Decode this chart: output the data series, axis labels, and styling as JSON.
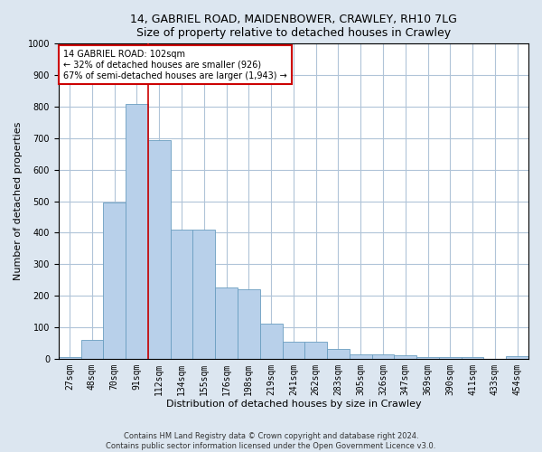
{
  "title1": "14, GABRIEL ROAD, MAIDENBOWER, CRAWLEY, RH10 7LG",
  "title2": "Size of property relative to detached houses in Crawley",
  "xlabel": "Distribution of detached houses by size in Crawley",
  "ylabel": "Number of detached properties",
  "categories": [
    "27sqm",
    "48sqm",
    "70sqm",
    "91sqm",
    "112sqm",
    "134sqm",
    "155sqm",
    "176sqm",
    "198sqm",
    "219sqm",
    "241sqm",
    "262sqm",
    "283sqm",
    "305sqm",
    "326sqm",
    "347sqm",
    "369sqm",
    "390sqm",
    "411sqm",
    "433sqm",
    "454sqm"
  ],
  "values": [
    5,
    60,
    497,
    810,
    695,
    410,
    410,
    225,
    220,
    110,
    55,
    55,
    30,
    15,
    15,
    10,
    5,
    5,
    5,
    0,
    8
  ],
  "bar_color": "#b8d0ea",
  "bar_edge_color": "#6a9ec0",
  "vline_x": 3.5,
  "annotation_line1": "14 GABRIEL ROAD: 102sqm",
  "annotation_line2": "← 32% of detached houses are smaller (926)",
  "annotation_line3": "67% of semi-detached houses are larger (1,943) →",
  "annotation_box_color": "white",
  "annotation_box_edge_color": "#cc0000",
  "vline_color": "#cc0000",
  "footer1": "Contains HM Land Registry data © Crown copyright and database right 2024.",
  "footer2": "Contains public sector information licensed under the Open Government Licence v3.0.",
  "bg_color": "#dce6f0",
  "plot_bg_color": "white",
  "ylim": [
    0,
    1000
  ],
  "yticks": [
    0,
    100,
    200,
    300,
    400,
    500,
    600,
    700,
    800,
    900,
    1000
  ],
  "grid_color": "#b0c4d8",
  "title_fontsize": 9,
  "label_fontsize": 8,
  "tick_fontsize": 7,
  "footer_fontsize": 6
}
